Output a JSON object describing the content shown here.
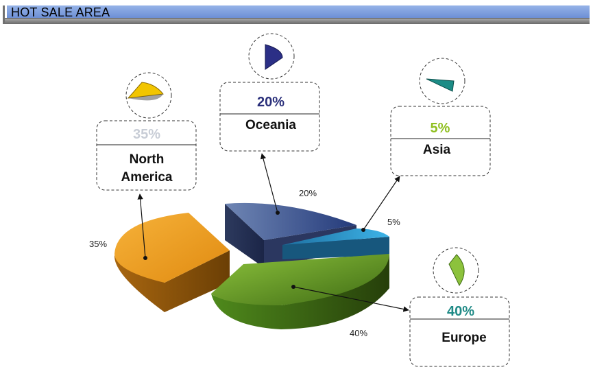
{
  "header": {
    "title": "HOT SALE AREA"
  },
  "chart_data": {
    "type": "pie",
    "title": "",
    "style": "3d-exploded",
    "slices": [
      {
        "label": "North America",
        "label_lines": [
          "North",
          "America"
        ],
        "value": 35,
        "display": "35%",
        "color": "#f0a020",
        "pct_color": "#c8cdd6"
      },
      {
        "label": "Oceania",
        "label_lines": [
          "Oceania"
        ],
        "value": 20,
        "display": "20%",
        "color": "#4d6295",
        "pct_color": "#2a2f7a"
      },
      {
        "label": "Asia",
        "label_lines": [
          "Asia"
        ],
        "value": 5,
        "display": "5%",
        "color": "#2a9fd0",
        "pct_color": "#8fbf1f"
      },
      {
        "label": "Europe",
        "label_lines": [
          "Europe"
        ],
        "value": 40,
        "display": "40%",
        "color": "#6ea52a",
        "pct_color": "#1f8a86"
      }
    ]
  }
}
